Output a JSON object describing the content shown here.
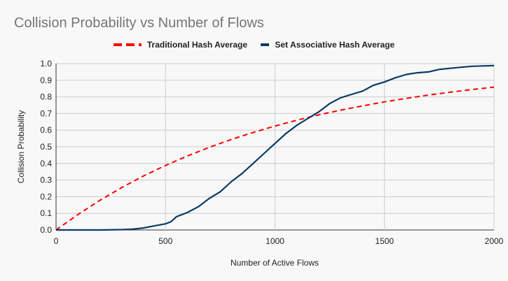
{
  "chart_data": {
    "type": "line",
    "title": "Collision Probability vs Number of Flows",
    "xlabel": "Number of Active Flows",
    "ylabel": "Collision Probability",
    "xlim": [
      0,
      2000
    ],
    "ylim": [
      0,
      1.0
    ],
    "xticks": [
      "0",
      "500",
      "1000",
      "1500",
      "2000"
    ],
    "yticks": [
      "0.0",
      "0.1",
      "0.2",
      "0.3",
      "0.4",
      "0.5",
      "0.6",
      "0.7",
      "0.8",
      "0.9",
      "1.0"
    ],
    "grid": true,
    "legend_position": "top",
    "series": [
      {
        "name": "Traditional Hash Average",
        "color": "#ff0000",
        "style": "dashed",
        "x": [
          0,
          100,
          200,
          300,
          400,
          500,
          600,
          700,
          800,
          900,
          1000,
          1100,
          1200,
          1300,
          1400,
          1500,
          1600,
          1700,
          1800,
          1900,
          2000
        ],
        "y": [
          0,
          0.093,
          0.178,
          0.255,
          0.325,
          0.388,
          0.445,
          0.497,
          0.544,
          0.586,
          0.625,
          0.66,
          0.692,
          0.72,
          0.746,
          0.77,
          0.791,
          0.811,
          0.828,
          0.844,
          0.859
        ]
      },
      {
        "name": "Set Associative Hash Average",
        "color": "#0b3a66",
        "style": "solid",
        "x": [
          0,
          100,
          200,
          300,
          350,
          400,
          450,
          500,
          525,
          550,
          600,
          650,
          700,
          750,
          800,
          850,
          900,
          950,
          1000,
          1050,
          1100,
          1150,
          1200,
          1250,
          1300,
          1350,
          1400,
          1450,
          1500,
          1550,
          1600,
          1650,
          1700,
          1750,
          1800,
          1850,
          1900,
          1950,
          2000
        ],
        "y": [
          0,
          0,
          0,
          0.002,
          0.005,
          0.012,
          0.025,
          0.037,
          0.05,
          0.08,
          0.105,
          0.14,
          0.19,
          0.23,
          0.29,
          0.34,
          0.4,
          0.46,
          0.52,
          0.58,
          0.63,
          0.67,
          0.71,
          0.76,
          0.795,
          0.815,
          0.835,
          0.87,
          0.89,
          0.915,
          0.935,
          0.945,
          0.95,
          0.965,
          0.972,
          0.978,
          0.984,
          0.986,
          0.988
        ]
      }
    ]
  }
}
